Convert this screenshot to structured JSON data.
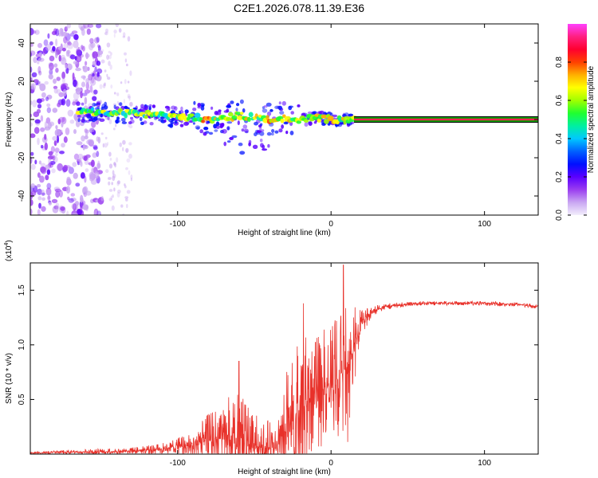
{
  "figure_title": "C2E1.2026.078.11.39.E36",
  "colors": {
    "axis": "#000000",
    "snr_line": "#e8312a",
    "trace_line": "#00a000",
    "trace_core": "#ff1f4e",
    "colormap": [
      "#f3eefc",
      "#c9a6f2",
      "#9a3ef0",
      "#5a00ff",
      "#0010ff",
      "#0060ff",
      "#00c8ff",
      "#00f0a0",
      "#20ff30",
      "#a0ff00",
      "#ffff00",
      "#ffb000",
      "#ff4000",
      "#ff0030",
      "#ff2080",
      "#ff40ff"
    ]
  },
  "chart_data": [
    {
      "id": "spectrogram",
      "type": "heatmap",
      "title": "C2E1.2026.078.11.39.E36",
      "xlabel": "Height of straight line (km)",
      "ylabel": "Frequency (Hz)",
      "xlim": [
        -196,
        135
      ],
      "ylim": [
        -50,
        50
      ],
      "xticks": [
        -100,
        0,
        100
      ],
      "xtick_labels": [
        "-100",
        "0",
        "100"
      ],
      "yticks": [
        -40,
        -20,
        0,
        20,
        40
      ],
      "ytick_labels": [
        "-40",
        "-20",
        "0",
        "20",
        "40"
      ],
      "grid": false,
      "colorbar": {
        "label": "Normalized spectral amplitude",
        "range": [
          0,
          1
        ],
        "ticks": [
          0.0,
          0.2,
          0.4,
          0.6,
          0.8
        ],
        "tick_labels": [
          "0.0",
          "0.2",
          "0.4",
          "0.6",
          "0.8"
        ]
      },
      "regions": [
        {
          "name": "broadband-noise",
          "x_range": [
            -196,
            -150
          ],
          "freq_range": [
            -50,
            50
          ],
          "amplitude": 0.15
        },
        {
          "name": "scattered-noise",
          "x_range": [
            -150,
            -130
          ],
          "freq_range": [
            -50,
            50
          ],
          "amplitude": 0.05
        },
        {
          "name": "trace-spread",
          "x_range": [
            -165,
            15
          ],
          "freq_range": [
            -18,
            12
          ],
          "amplitude": 0.35
        },
        {
          "name": "steady-tone",
          "x_range": [
            15,
            135
          ],
          "frequency": 0,
          "amplitude": 0.95
        }
      ],
      "trace_ridge": {
        "x": [
          -165,
          -150,
          -130,
          -110,
          -90,
          -80,
          -70,
          -60,
          -50,
          -40,
          -30,
          -20,
          -10,
          0,
          10,
          15
        ],
        "freq": [
          4,
          4,
          3,
          2,
          1,
          0,
          1,
          2,
          1,
          0,
          1,
          0,
          1,
          0,
          0,
          0
        ]
      }
    },
    {
      "id": "snr",
      "type": "line",
      "xlabel": "Height of straight line (km)",
      "ylabel": "SNR (10 * v/v)",
      "yscale_label": "(x10",
      "yscale_exponent": "4",
      "yscale_close": ")",
      "xlim": [
        -196,
        135
      ],
      "ylim": [
        0,
        1.75
      ],
      "xticks": [
        -100,
        0,
        100
      ],
      "xtick_labels": [
        "-100",
        "0",
        "100"
      ],
      "yticks": [
        0.5,
        1.0,
        1.5
      ],
      "ytick_labels": [
        "0.5",
        "1.0",
        "1.5"
      ],
      "grid": false,
      "series": [
        {
          "name": "SNR",
          "envelope": {
            "x": [
              -196,
              -170,
              -150,
              -130,
              -110,
              -100,
              -90,
              -80,
              -70,
              -62,
              -55,
              -50,
              -45,
              -40,
              -35,
              -30,
              -25,
              -20,
              -17,
              -15,
              -10,
              -5,
              0,
              5,
              8,
              10,
              12,
              15,
              18,
              20,
              25,
              30,
              35,
              40,
              50,
              60,
              80,
              100,
              120,
              135
            ],
            "base": [
              0.01,
              0.02,
              0.02,
              0.03,
              0.05,
              0.07,
              0.08,
              0.12,
              0.15,
              0.12,
              0.1,
              0.08,
              0.06,
              0.05,
              0.06,
              0.2,
              0.3,
              0.4,
              0.45,
              0.5,
              0.55,
              0.6,
              0.65,
              0.7,
              0.8,
              0.75,
              0.8,
              1.0,
              1.1,
              1.2,
              1.28,
              1.33,
              1.35,
              1.36,
              1.37,
              1.38,
              1.38,
              1.38,
              1.37,
              1.35
            ],
            "amp": [
              0.01,
              0.02,
              0.03,
              0.03,
              0.05,
              0.08,
              0.12,
              0.25,
              0.35,
              0.45,
              0.4,
              0.3,
              0.28,
              0.25,
              0.25,
              0.5,
              0.7,
              0.85,
              0.9,
              0.6,
              0.5,
              0.55,
              0.6,
              0.55,
              0.6,
              0.95,
              0.6,
              0.35,
              0.25,
              0.12,
              0.06,
              0.04,
              0.03,
              0.03,
              0.02,
              0.02,
              0.02,
              0.02,
              0.02,
              0.02
            ]
          },
          "peaks": [
            {
              "x": 8,
              "y": 1.73
            },
            {
              "x": -18,
              "y": 1.38
            },
            {
              "x": -60,
              "y": 0.85
            },
            {
              "x": 10,
              "y": 0.37
            }
          ]
        }
      ]
    }
  ]
}
